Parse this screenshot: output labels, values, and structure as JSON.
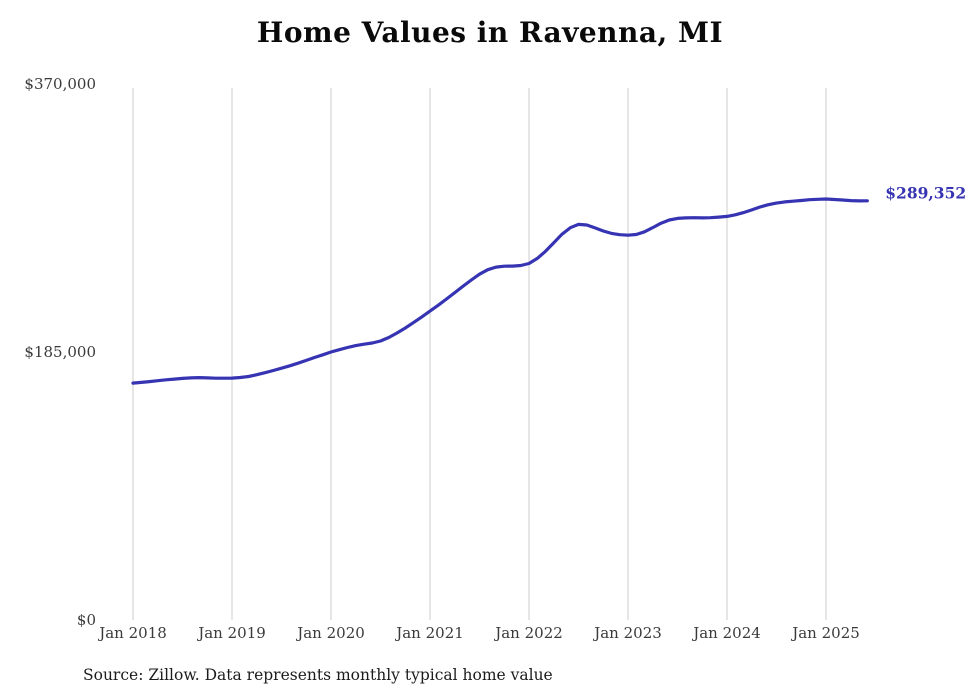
{
  "chart_data": {
    "type": "line",
    "title": "Home Values in Ravenna, MI",
    "xlabel": "",
    "ylabel": "",
    "ylim": [
      0,
      370000
    ],
    "grid": "vertical",
    "legend": "none",
    "gridline_color": "#cccccc",
    "line_color": "#3634b2",
    "end_label": "$289,352",
    "end_label_color": "#3634b2",
    "source": "Source: Zillow. Data represents monthly typical home value",
    "y_ticks": [
      {
        "label": "$370,000",
        "value": 370000
      },
      {
        "label": "$185,000",
        "value": 185000
      },
      {
        "label": "$0",
        "value": 0
      }
    ],
    "x_ticks": [
      "Jan 2018",
      "Jan 2019",
      "Jan 2020",
      "Jan 2021",
      "Jan 2022",
      "Jan 2023",
      "Jan 2024",
      "Jan 2025"
    ],
    "series": [
      {
        "name": "Typical home value",
        "color": "#3634b2",
        "months": [
          "2018-01",
          "2018-02",
          "2018-03",
          "2018-04",
          "2018-05",
          "2018-06",
          "2018-07",
          "2018-08",
          "2018-09",
          "2018-10",
          "2018-11",
          "2018-12",
          "2019-01",
          "2019-02",
          "2019-03",
          "2019-04",
          "2019-05",
          "2019-06",
          "2019-07",
          "2019-08",
          "2019-09",
          "2019-10",
          "2019-11",
          "2019-12",
          "2020-01",
          "2020-02",
          "2020-03",
          "2020-04",
          "2020-05",
          "2020-06",
          "2020-07",
          "2020-08",
          "2020-09",
          "2020-10",
          "2020-11",
          "2020-12",
          "2021-01",
          "2021-02",
          "2021-03",
          "2021-04",
          "2021-05",
          "2021-06",
          "2021-07",
          "2021-08",
          "2021-09",
          "2021-10",
          "2021-11",
          "2021-12",
          "2022-01",
          "2022-02",
          "2022-03",
          "2022-04",
          "2022-05",
          "2022-06",
          "2022-07",
          "2022-08",
          "2022-09",
          "2022-10",
          "2022-11",
          "2022-12",
          "2023-01",
          "2023-02",
          "2023-03",
          "2023-04",
          "2023-05",
          "2023-06",
          "2023-07",
          "2023-08",
          "2023-09",
          "2023-10",
          "2023-11",
          "2023-12",
          "2024-01",
          "2024-02",
          "2024-03",
          "2024-04",
          "2024-05",
          "2024-06",
          "2024-07",
          "2024-08",
          "2024-09",
          "2024-10",
          "2024-11",
          "2024-12",
          "2025-01",
          "2025-02",
          "2025-03",
          "2025-04",
          "2025-05",
          "2025-06"
        ],
        "values": [
          163500,
          164000,
          164600,
          165200,
          165800,
          166300,
          166800,
          167100,
          167300,
          167100,
          166900,
          166900,
          167000,
          167400,
          168100,
          169300,
          170700,
          172200,
          173800,
          175500,
          177300,
          179200,
          181200,
          183100,
          185000,
          186600,
          188100,
          189400,
          190400,
          191200,
          192600,
          195000,
          198100,
          201600,
          205300,
          209200,
          213200,
          217300,
          221600,
          226000,
          230400,
          234700,
          238700,
          241800,
          243600,
          244200,
          244300,
          244700,
          246100,
          249600,
          254500,
          260400,
          266300,
          270800,
          273100,
          272700,
          270700,
          268500,
          266900,
          266000,
          265600,
          266100,
          268000,
          270900,
          273900,
          276100,
          277200,
          277600,
          277700,
          277600,
          277700,
          278100,
          278600,
          279700,
          281200,
          283100,
          285100,
          286700,
          287800,
          288600,
          289100,
          289600,
          290100,
          290400,
          290600,
          290300,
          289900,
          289500,
          289300,
          289352
        ]
      }
    ]
  }
}
